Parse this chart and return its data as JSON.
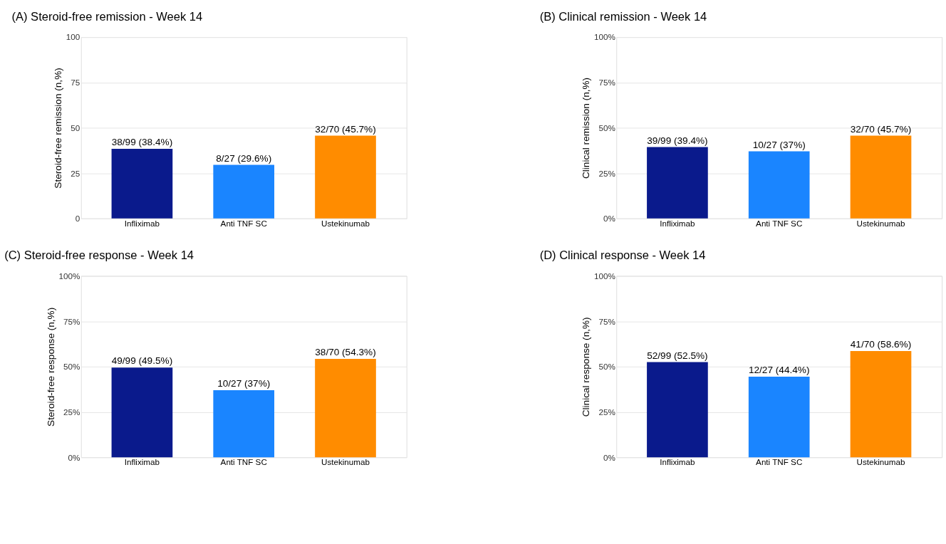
{
  "chart_data": [
    {
      "type": "bar",
      "title": "(A) Steroid-free remission - Week 14",
      "ylabel": "Steroid-free remission (n,%)",
      "categories": [
        "Infliximab",
        "Anti TNF SC",
        "Ustekinumab"
      ],
      "values": [
        38.4,
        29.6,
        45.7
      ],
      "colors": [
        "#0a1a8c",
        "#1a85ff",
        "#ff8c00"
      ],
      "value_labels": [
        "38/99 (38.4%)",
        "8/27 (29.6%)",
        "32/70 (45.7%)"
      ],
      "ylim": [
        0,
        100
      ],
      "yticks": [
        0,
        25,
        50,
        75,
        100
      ],
      "grid": "y",
      "legend": false
    },
    {
      "type": "bar",
      "title": "(B) Clinical remission - Week 14",
      "ylabel": "Clinical remission (n,%)",
      "categories": [
        "Infliximab",
        "Anti TNF SC",
        "Ustekinumab"
      ],
      "values": [
        39.4,
        37,
        45.7
      ],
      "colors": [
        "#0a1a8c",
        "#1a85ff",
        "#ff8c00"
      ],
      "value_labels": [
        "39/99 (39.4%)",
        "10/27 (37%)",
        "32/70 (45.7%)"
      ],
      "ylim": [
        0,
        100
      ],
      "yticks": [
        {
          "value": 0,
          "label": "0%"
        },
        {
          "value": 25,
          "label": "25%"
        },
        {
          "value": 50,
          "label": "50%"
        },
        {
          "value": 75,
          "label": "75%"
        },
        {
          "value": 100,
          "label": "100%"
        }
      ],
      "grid": "y",
      "legend": false
    },
    {
      "type": "bar",
      "title": "(C) Steroid-free response - Week 14",
      "ylabel": "Steroid-free response (n,%)",
      "categories": [
        "Infliximab",
        "Anti TNF SC",
        "Ustekinumab"
      ],
      "values": [
        49.5,
        37,
        54.3
      ],
      "colors": [
        "#0a1a8c",
        "#1a85ff",
        "#ff8c00"
      ],
      "value_labels": [
        "49/99 (49.5%)",
        "10/27 (37%)",
        "38/70 (54.3%)"
      ],
      "ylim": [
        0,
        100
      ],
      "yticks": [
        {
          "value": 0,
          "label": "0%"
        },
        {
          "value": 25,
          "label": "25%"
        },
        {
          "value": 50,
          "label": "50%"
        },
        {
          "value": 75,
          "label": "75%"
        },
        {
          "value": 100,
          "label": "100%"
        }
      ],
      "grid": "y",
      "legend": false
    },
    {
      "type": "bar",
      "title": "(D) Clinical response - Week 14",
      "ylabel": "Clinical response (n,%)",
      "categories": [
        "Infliximab",
        "Anti TNF SC",
        "Ustekinumab"
      ],
      "values": [
        52.5,
        44.4,
        58.6
      ],
      "colors": [
        "#0a1a8c",
        "#1a85ff",
        "#ff8c00"
      ],
      "value_labels": [
        "52/99 (52.5%)",
        "12/27 (44.4%)",
        "41/70 (58.6%)"
      ],
      "ylim": [
        0,
        100
      ],
      "yticks": [
        {
          "value": 0,
          "label": "0%"
        },
        {
          "value": 25,
          "label": "25%"
        },
        {
          "value": 50,
          "label": "50%"
        },
        {
          "value": 75,
          "label": "75%"
        },
        {
          "value": 100,
          "label": "100%"
        }
      ],
      "grid": "y",
      "legend": false
    }
  ]
}
